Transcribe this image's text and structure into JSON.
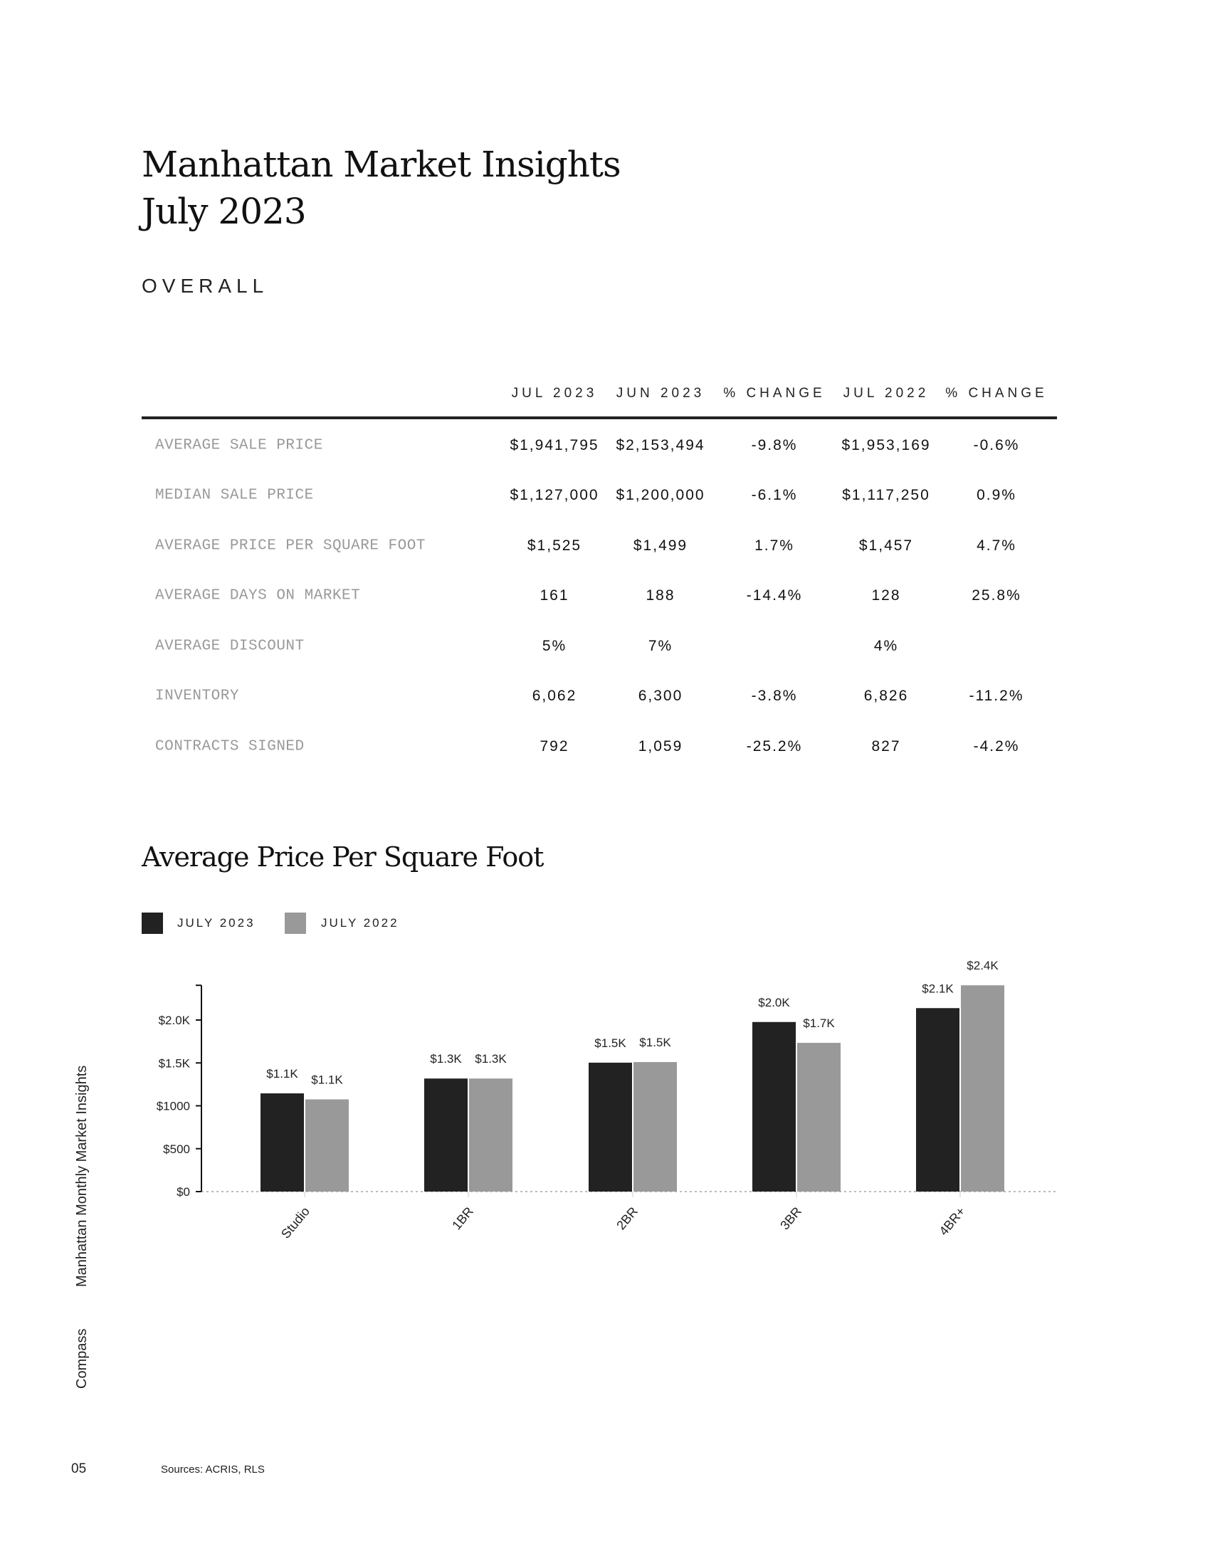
{
  "header": {
    "title_line1": "Manhattan Market Insights",
    "title_line2": "July 2023",
    "section": "OVERALL"
  },
  "table": {
    "columns": [
      "JUL 2023",
      "JUN 2023",
      "% CHANGE",
      "JUL 2022",
      "% CHANGE"
    ],
    "rows": [
      {
        "label": "AVERAGE SALE PRICE",
        "values": [
          "$1,941,795",
          "$2,153,494",
          "-9.8%",
          "$1,953,169",
          "-0.6%"
        ]
      },
      {
        "label": "MEDIAN SALE PRICE",
        "values": [
          "$1,127,000",
          "$1,200,000",
          "-6.1%",
          "$1,117,250",
          "0.9%"
        ]
      },
      {
        "label": "AVERAGE PRICE PER SQUARE FOOT",
        "values": [
          "$1,525",
          "$1,499",
          "1.7%",
          "$1,457",
          "4.7%"
        ]
      },
      {
        "label": "AVERAGE DAYS ON MARKET",
        "values": [
          "161",
          "188",
          "-14.4%",
          "128",
          "25.8%"
        ]
      },
      {
        "label": "AVERAGE DISCOUNT",
        "values": [
          "5%",
          "7%",
          "",
          "4%",
          ""
        ]
      },
      {
        "label": "INVENTORY",
        "values": [
          "6,062",
          "6,300",
          "-3.8%",
          "6,826",
          "-11.2%"
        ]
      },
      {
        "label": "CONTRACTS SIGNED",
        "values": [
          "792",
          "1,059",
          "-25.2%",
          "827",
          "-4.2%"
        ]
      }
    ]
  },
  "chart_data": {
    "type": "bar",
    "title": "Average Price Per Square Foot",
    "categories": [
      "Studio",
      "1BR",
      "2BR",
      "3BR",
      "4BR+"
    ],
    "series": [
      {
        "name": "JULY 2023",
        "color": "#222222",
        "values": [
          1145,
          1318,
          1503,
          1977,
          2139
        ],
        "labels": [
          "$1.1K",
          "$1.3K",
          "$1.5K",
          "$2.0K",
          "$2.1K"
        ]
      },
      {
        "name": "JULY 2022",
        "color": "#999999",
        "values": [
          1075,
          1318,
          1510,
          1734,
          2405
        ],
        "labels": [
          "$1.1K",
          "$1.3K",
          "$1.5K",
          "$1.7K",
          "$2.4K"
        ]
      }
    ],
    "yticks": [
      0,
      500,
      1000,
      1500,
      2000
    ],
    "ytick_labels": [
      "$0",
      "$500",
      "$1000",
      "$1.5K",
      "$2.0K"
    ],
    "ylim": [
      0,
      2405
    ],
    "legend": "top-left",
    "grid": false
  },
  "sidebar": {
    "publication": "Manhattan Monthly Market Insights",
    "brand": "Compass"
  },
  "footer": {
    "page": "05",
    "sources": "Sources: ACRIS, RLS"
  }
}
